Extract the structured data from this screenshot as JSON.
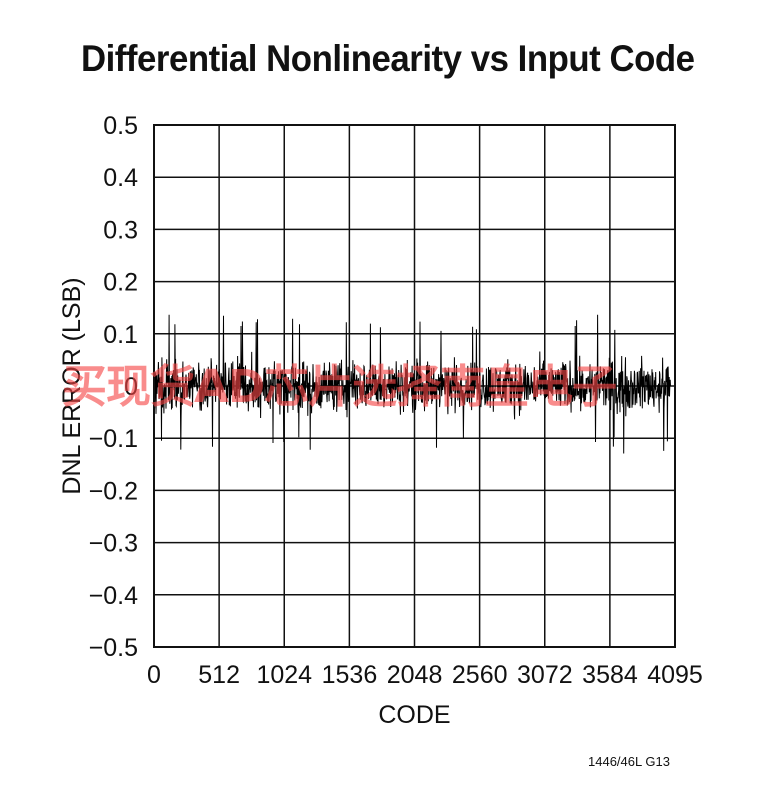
{
  "chart_data": {
    "type": "line",
    "title": "Differential Nonlinearity vs Input Code",
    "xlabel": "CODE",
    "ylabel": "DNL ERROR (LSB)",
    "xlim": [
      0,
      4095
    ],
    "ylim": [
      -0.5,
      0.5
    ],
    "x_ticks": [
      0,
      512,
      1024,
      1536,
      2048,
      2560,
      3072,
      3584,
      4095
    ],
    "x_tick_labels": [
      "0",
      "512",
      "1024",
      "1536",
      "2048",
      "2560",
      "3072",
      "3584",
      "4095"
    ],
    "y_ticks": [
      -0.5,
      -0.4,
      -0.3,
      -0.2,
      -0.1,
      0,
      0.1,
      0.2,
      0.3,
      0.4,
      0.5
    ],
    "y_tick_labels": [
      "−0.5",
      "−0.4",
      "−0.3",
      "−0.2",
      "−0.1",
      "0",
      "0.1",
      "0.2",
      "0.3",
      "0.4",
      "0.5"
    ],
    "grid": true,
    "series": [
      {
        "color": "#000000",
        "typical_range": [
          -0.07,
          0.07
        ],
        "peak_max": 0.14,
        "peak_min": -0.13
      }
    ]
  },
  "figure_id": "1446/46L G13",
  "watermark": "买现货AD芯片选择南皇电子"
}
